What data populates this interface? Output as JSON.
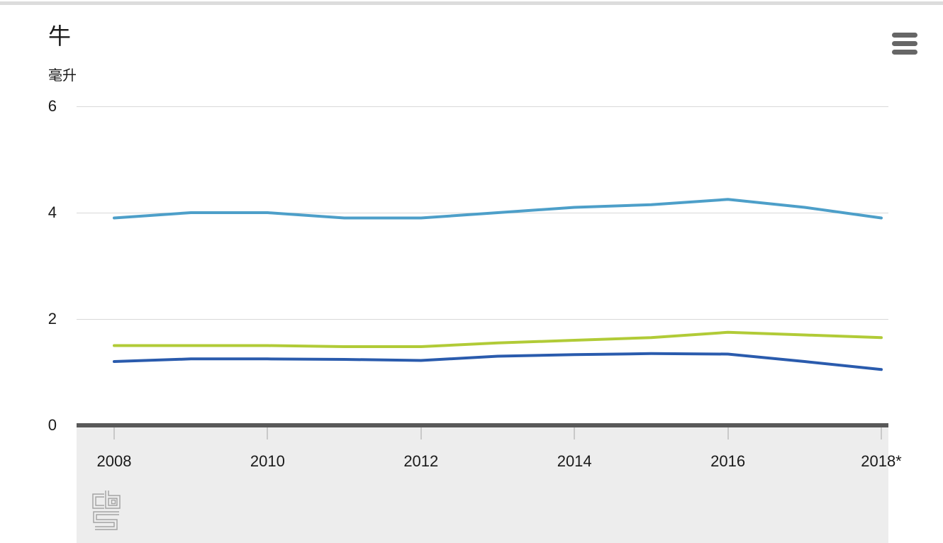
{
  "chart_data": {
    "type": "line",
    "title": "牛",
    "ylabel": "毫升",
    "x": [
      2008,
      2009,
      2010,
      2011,
      2012,
      2013,
      2014,
      2015,
      2016,
      2017,
      2018
    ],
    "series": [
      {
        "name": "light-blue-line",
        "color": "#4D9FC9",
        "values": [
          3.9,
          4.0,
          4.0,
          3.9,
          3.9,
          4.0,
          4.1,
          4.15,
          4.25,
          4.1,
          3.9
        ]
      },
      {
        "name": "green-line",
        "color": "#B1CB37",
        "values": [
          1.5,
          1.5,
          1.5,
          1.48,
          1.48,
          1.55,
          1.6,
          1.65,
          1.75,
          1.7,
          1.65
        ]
      },
      {
        "name": "dark-blue-line",
        "color": "#2A5BAD",
        "values": [
          1.2,
          1.25,
          1.25,
          1.24,
          1.22,
          1.3,
          1.33,
          1.35,
          1.34,
          1.2,
          1.05
        ]
      }
    ],
    "yticks": [
      0,
      2,
      4,
      6
    ],
    "ylim": [
      0,
      6
    ],
    "xticks": [
      {
        "value": 2008,
        "label": "2008"
      },
      {
        "value": 2010,
        "label": "2010"
      },
      {
        "value": 2012,
        "label": "2012"
      },
      {
        "value": 2014,
        "label": "2014"
      },
      {
        "value": 2016,
        "label": "2016"
      },
      {
        "value": 2018,
        "label": "2018*"
      }
    ],
    "legend": false,
    "grid": true
  },
  "header": {
    "menu_icon": "hamburger-menu-icon"
  },
  "footer": {
    "logo": "cbs-logo"
  },
  "colors": {
    "axis_bar": "#595959",
    "axis_band": "#ededed",
    "gridline": "#d9d9d9",
    "tick": "#c9c9c9",
    "menu_icon": "#666666",
    "logo_gray": "#a3a3a3",
    "top_border": "#dcdcdc"
  }
}
